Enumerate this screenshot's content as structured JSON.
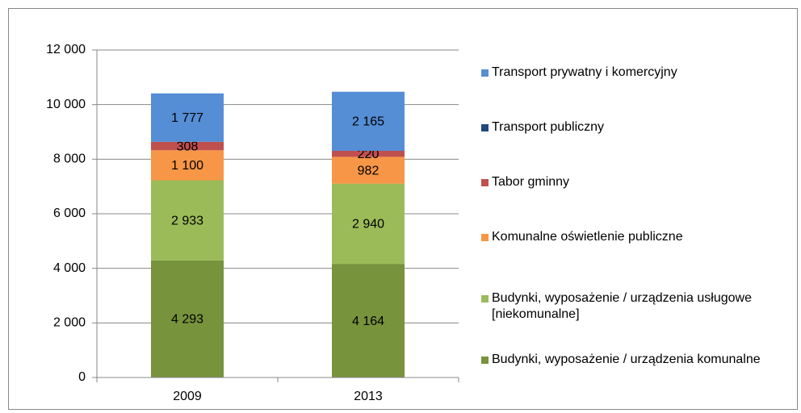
{
  "chart_data": {
    "type": "stacked_bar",
    "categories": [
      "2009",
      "2013"
    ],
    "series": [
      {
        "name": "Budynki, wyposażenie / urządzenia komunalne",
        "color": "#77933c",
        "values": [
          4293,
          4164
        ],
        "value_labels": [
          "4 293",
          "4 164"
        ]
      },
      {
        "name": "Budynki, wyposażenie / urządzenia usługowe [niekomunalne]",
        "color": "#9bbb59",
        "values": [
          2933,
          2940
        ],
        "value_labels": [
          "2 933",
          "2 940"
        ]
      },
      {
        "name": "Komunalne oświetlenie publiczne",
        "color": "#f79646",
        "values": [
          1100,
          982
        ],
        "value_labels": [
          "1 100",
          "982"
        ]
      },
      {
        "name": "Tabor gminny",
        "color": "#c0504d",
        "values": [
          308,
          220
        ],
        "value_labels": [
          "308",
          "220"
        ]
      },
      {
        "name": "Transport publiczny",
        "color": "#1f497d",
        "values": [
          0,
          0
        ]
      },
      {
        "name": "Transport prywatny i komercyjny",
        "color": "#558ed5",
        "values": [
          1777,
          2165
        ],
        "value_labels": [
          "1 777",
          "2 165"
        ]
      }
    ],
    "ylim": [
      0,
      12000
    ],
    "yticks": [
      0,
      {
        "value": 2000,
        "label": "2 000"
      },
      {
        "value": 4000,
        "label": "4 000"
      },
      {
        "value": 6000,
        "label": "6 000"
      },
      {
        "value": 8000,
        "label": "8 000"
      },
      {
        "value": 10000,
        "label": "10 000"
      },
      {
        "value": 12000,
        "label": "12 000"
      }
    ],
    "grid": true,
    "legend": "right"
  }
}
